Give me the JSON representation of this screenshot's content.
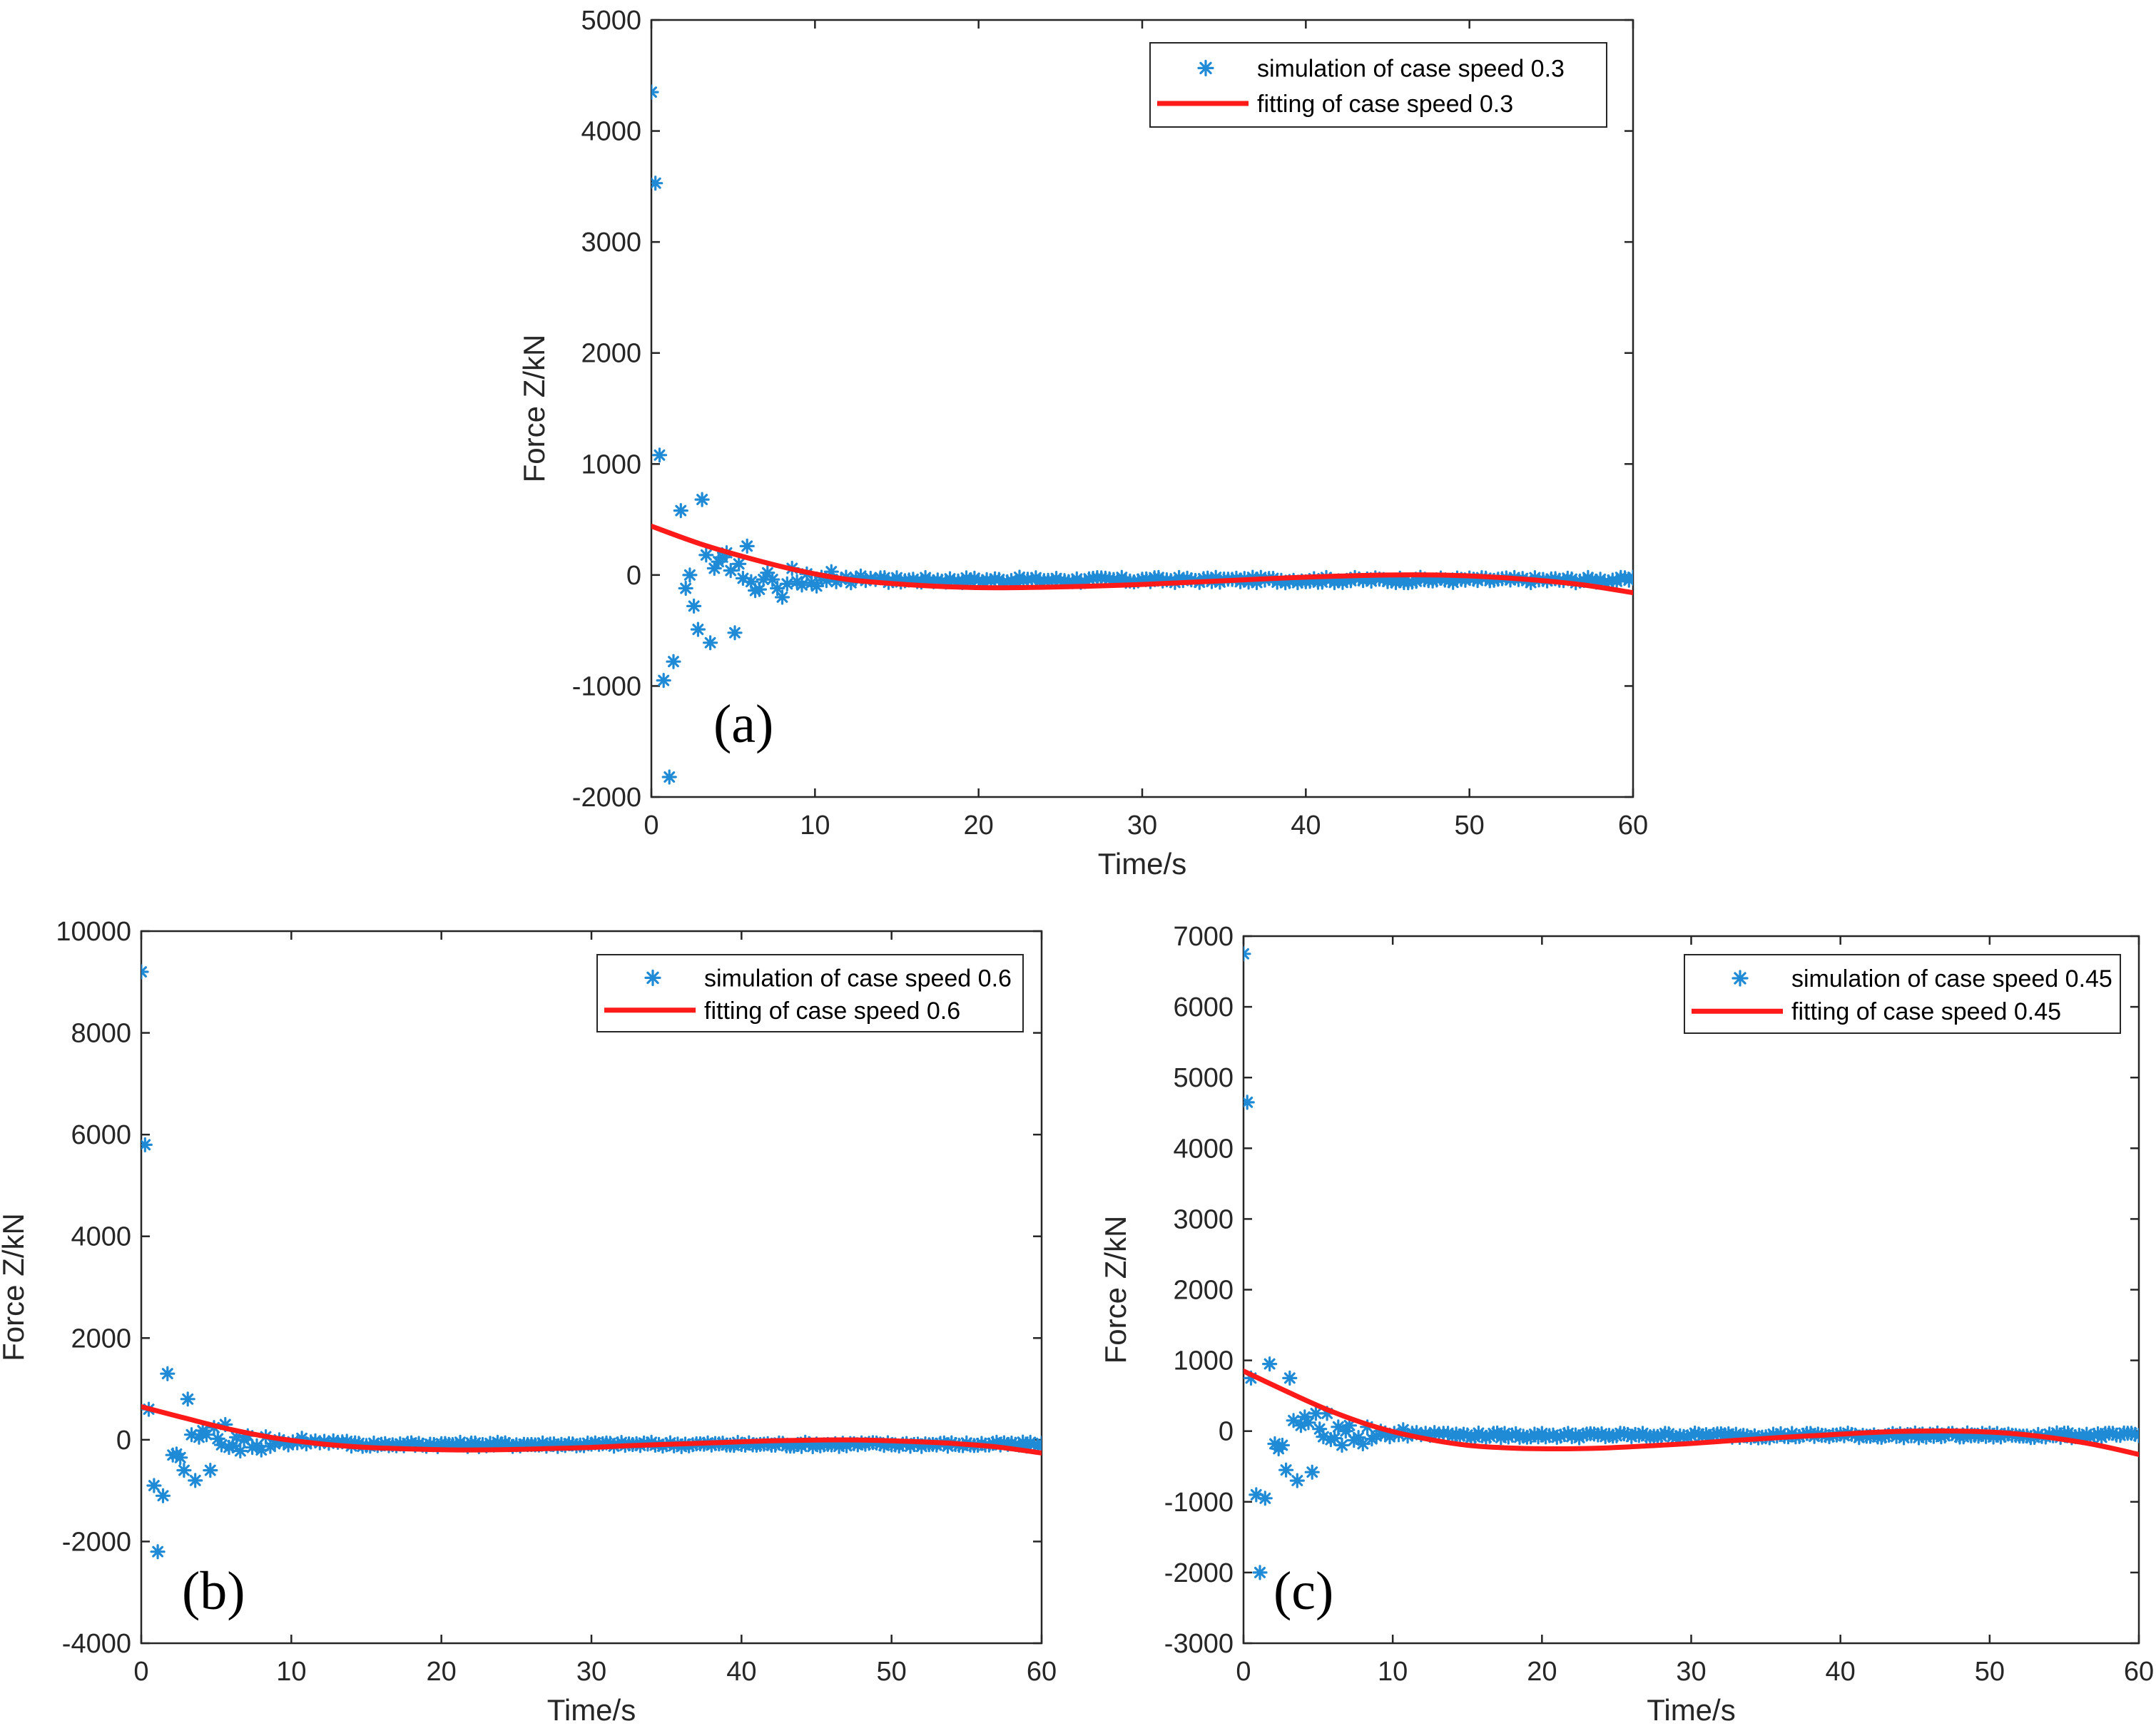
{
  "colors": {
    "simulation": "#1f8ad6",
    "fitting": "#ff1a1a",
    "axis": "#262626"
  },
  "chart_data": [
    {
      "id": "a",
      "type": "scatter",
      "panel_label": "(a)",
      "xlabel": "Time/s",
      "ylabel": "Force Z/kN",
      "xlim": [
        0,
        60
      ],
      "ylim": [
        -2000,
        5000
      ],
      "xticks": [
        0,
        10,
        20,
        30,
        40,
        50,
        60
      ],
      "yticks": [
        -2000,
        -1000,
        0,
        1000,
        2000,
        3000,
        4000,
        5000
      ],
      "xtick_labels": [
        "0",
        "10",
        "20",
        "30",
        "40",
        "50",
        "60"
      ],
      "ytick_labels": [
        "-2000",
        "-1000",
        "0",
        "1000",
        "2000",
        "3000",
        "4000",
        "5000"
      ],
      "legend": {
        "position": "top-right",
        "entries": [
          "simulation of case speed 0.3",
          "fitting of case speed 0.3"
        ]
      },
      "series": [
        {
          "name": "simulation of case speed 0.3",
          "style": "star-markers",
          "x": [
            0.0,
            0.25,
            0.5,
            0.75,
            1.1,
            1.35,
            1.8,
            2.1,
            2.35,
            2.6,
            2.85,
            3.1,
            3.35,
            3.6,
            3.85,
            4.1,
            4.35,
            4.6,
            4.85,
            5.1,
            5.35,
            5.6,
            5.85,
            6.1,
            6.35,
            6.6,
            6.85,
            7.1,
            7.4,
            7.7,
            8.0,
            8.3,
            8.6,
            8.9,
            9.2,
            9.5,
            9.8,
            10.1,
            10.4,
            10.7,
            11.0,
            11.3,
            11.6,
            11.9,
            12.2,
            12.5,
            12.8,
            13.1,
            13.4,
            13.7
          ],
          "y": [
            4350,
            3530,
            1080,
            -950,
            -1820,
            -780,
            580,
            -120,
            0,
            -280,
            -490,
            680,
            180,
            -610,
            60,
            120,
            160,
            200,
            40,
            -520,
            100,
            -30,
            260,
            -60,
            -140,
            -130,
            -40,
            20,
            -40,
            -120,
            -200,
            -80,
            60,
            -60,
            -90,
            10,
            -70,
            -100,
            -20,
            -50,
            30,
            -60,
            -40,
            -20,
            -70,
            -30,
            -10,
            -50,
            -30,
            -40
          ],
          "tail": {
            "x_start": 14,
            "x_end": 60,
            "step": 0.25,
            "baseline": -45,
            "jitter": 25
          }
        },
        {
          "name": "fitting of case speed 0.3",
          "style": "line",
          "x": [
            0,
            3,
            6,
            9,
            12,
            15,
            18,
            21,
            24,
            27,
            30,
            33,
            36,
            39,
            42,
            45,
            48,
            51,
            54,
            57,
            60
          ],
          "y": [
            440,
            280,
            150,
            40,
            -40,
            -80,
            -105,
            -115,
            -110,
            -100,
            -85,
            -65,
            -45,
            -25,
            -10,
            0,
            0,
            -15,
            -45,
            -90,
            -160
          ]
        }
      ]
    },
    {
      "id": "b",
      "type": "scatter",
      "panel_label": "(b)",
      "xlabel": "Time/s",
      "ylabel": "Force Z/kN",
      "xlim": [
        0,
        60
      ],
      "ylim": [
        -4000,
        10000
      ],
      "xticks": [
        0,
        10,
        20,
        30,
        40,
        50,
        60
      ],
      "yticks": [
        -4000,
        -2000,
        0,
        2000,
        4000,
        6000,
        8000,
        10000
      ],
      "xtick_labels": [
        "0",
        "10",
        "20",
        "30",
        "40",
        "50",
        "60"
      ],
      "ytick_labels": [
        "-4000",
        "-2000",
        "0",
        "2000",
        "4000",
        "6000",
        "8000",
        "10000"
      ],
      "legend": {
        "position": "top-right",
        "entries": [
          "simulation of case speed 0.6",
          "fitting of case speed 0.6"
        ]
      },
      "series": [
        {
          "name": "simulation of case speed 0.6",
          "style": "star-markers",
          "x": [
            0.0,
            0.25,
            0.5,
            0.85,
            1.1,
            1.45,
            1.75,
            2.1,
            2.35,
            2.6,
            2.85,
            3.1,
            3.35,
            3.6,
            3.85,
            4.1,
            4.35,
            4.6,
            4.85,
            5.1,
            5.35,
            5.6,
            5.85,
            6.1,
            6.35,
            6.6,
            6.85,
            7.1,
            7.4,
            7.7,
            8.0,
            8.3,
            8.6,
            8.9,
            9.2,
            9.5,
            9.8,
            10.1,
            10.4,
            10.7,
            11.0,
            11.3,
            11.6,
            11.9,
            12.2,
            12.5,
            12.8,
            13.1,
            13.4,
            13.7
          ],
          "y": [
            9200,
            5800,
            600,
            -900,
            -2200,
            -1100,
            1300,
            -300,
            -280,
            -350,
            -600,
            800,
            100,
            -800,
            50,
            180,
            100,
            -600,
            240,
            20,
            -100,
            300,
            -150,
            -120,
            50,
            -220,
            0,
            80,
            -150,
            -120,
            -200,
            60,
            -130,
            -80,
            0,
            -60,
            -100,
            -40,
            -60,
            30,
            -80,
            -40,
            -20,
            -60,
            -30,
            -70,
            -20,
            -50,
            -40,
            -30
          ],
          "tail": {
            "x_start": 14,
            "x_end": 60,
            "step": 0.25,
            "baseline": -90,
            "jitter": 45
          }
        },
        {
          "name": "fitting of case speed 0.6",
          "style": "line",
          "x": [
            0,
            3,
            6,
            9,
            12,
            15,
            18,
            21,
            24,
            27,
            30,
            33,
            36,
            39,
            42,
            45,
            48,
            51,
            54,
            57,
            60
          ],
          "y": [
            650,
            420,
            200,
            30,
            -80,
            -150,
            -180,
            -200,
            -195,
            -175,
            -150,
            -110,
            -80,
            -50,
            -20,
            -5,
            -5,
            -30,
            -70,
            -140,
            -260
          ]
        }
      ]
    },
    {
      "id": "c",
      "type": "scatter",
      "panel_label": "(c)",
      "xlabel": "Time/s",
      "ylabel": "Force Z/kN",
      "xlim": [
        0,
        60
      ],
      "ylim": [
        -3000,
        7000
      ],
      "xticks": [
        0,
        10,
        20,
        30,
        40,
        50,
        60
      ],
      "yticks": [
        -3000,
        -2000,
        -1000,
        0,
        1000,
        2000,
        3000,
        4000,
        5000,
        6000,
        7000
      ],
      "xtick_labels": [
        "0",
        "10",
        "20",
        "30",
        "40",
        "50",
        "60"
      ],
      "ytick_labels": [
        "-3000",
        "-2000",
        "-1000",
        "0",
        "1000",
        "2000",
        "3000",
        "4000",
        "5000",
        "6000",
        "7000"
      ],
      "legend": {
        "position": "top-right",
        "entries": [
          "simulation of case speed 0.45",
          "fitting of case speed 0.45"
        ]
      },
      "series": [
        {
          "name": "simulation of case speed 0.45",
          "style": "star-markers",
          "x": [
            0.0,
            0.25,
            0.5,
            0.85,
            1.1,
            1.45,
            1.75,
            2.1,
            2.35,
            2.6,
            2.85,
            3.1,
            3.35,
            3.6,
            3.85,
            4.1,
            4.35,
            4.6,
            4.85,
            5.1,
            5.35,
            5.6,
            5.85,
            6.1,
            6.35,
            6.6,
            6.85,
            7.1,
            7.4,
            7.7,
            8.0,
            8.3,
            8.6,
            8.9,
            9.2,
            9.5,
            9.8,
            10.1,
            10.4,
            10.7,
            11.0,
            11.3,
            11.6,
            11.9,
            12.2,
            12.5,
            12.8,
            13.1,
            13.4,
            13.7
          ],
          "y": [
            6750,
            4650,
            750,
            -900,
            -2000,
            -950,
            950,
            -180,
            -250,
            -200,
            -550,
            750,
            150,
            -700,
            80,
            200,
            120,
            -580,
            250,
            30,
            -80,
            250,
            -120,
            -100,
            60,
            -200,
            0,
            80,
            -130,
            -90,
            -180,
            60,
            -110,
            -70,
            0,
            -50,
            -80,
            -30,
            -50,
            20,
            -70,
            -30,
            -20,
            -50,
            -30,
            -60,
            -20,
            -40,
            -30,
            -30
          ],
          "tail": {
            "x_start": 14,
            "x_end": 60,
            "step": 0.25,
            "baseline": -60,
            "jitter": 35
          }
        },
        {
          "name": "fitting of case speed 0.45",
          "style": "line",
          "x": [
            0,
            3,
            6,
            9,
            12,
            15,
            18,
            21,
            24,
            27,
            30,
            33,
            36,
            39,
            42,
            45,
            48,
            51,
            54,
            57,
            60
          ],
          "y": [
            850,
            550,
            270,
            50,
            -100,
            -200,
            -240,
            -250,
            -240,
            -210,
            -175,
            -130,
            -90,
            -55,
            -20,
            0,
            0,
            -25,
            -90,
            -190,
            -330
          ]
        }
      ]
    }
  ]
}
